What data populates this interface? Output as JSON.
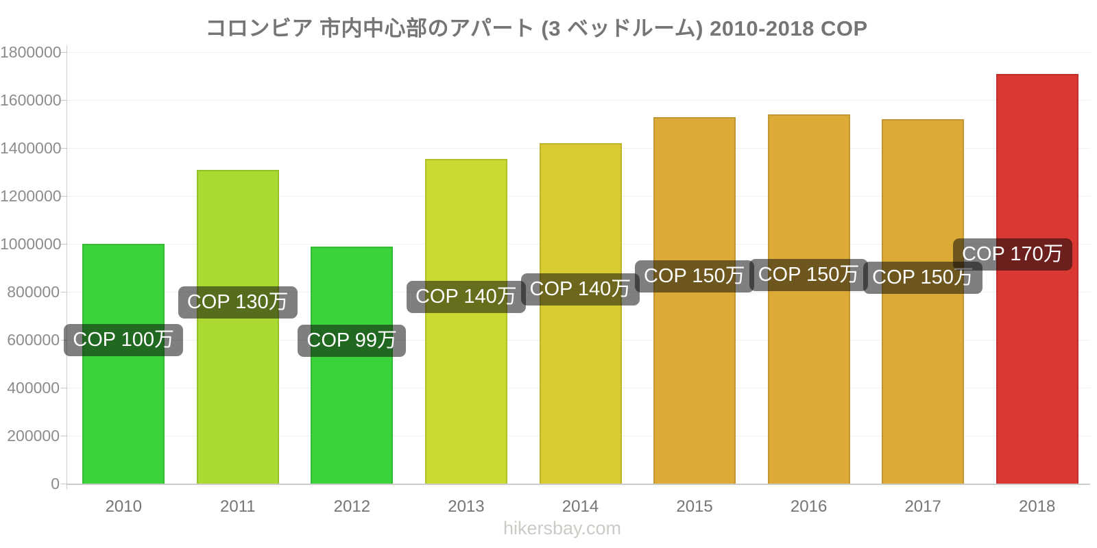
{
  "footer": {
    "text": "hikersbay.com"
  },
  "chart_data": {
    "type": "bar",
    "title": "コロンビア 市内中心部のアパート (3 ベッドルーム) 2010-2018 COP",
    "xlabel": "",
    "ylabel": "",
    "categories": [
      "2010",
      "2011",
      "2012",
      "2013",
      "2014",
      "2015",
      "2016",
      "2017",
      "2018"
    ],
    "values": [
      1000000,
      1310000,
      990000,
      1355000,
      1420000,
      1530000,
      1540000,
      1520000,
      1710000
    ],
    "bar_labels": [
      "COP 100万",
      "COP 130万",
      "COP 99万",
      "COP 140万",
      "COP 140万",
      "COP 150万",
      "COP 150万",
      "COP 150万",
      "COP 170万"
    ],
    "bar_colors": [
      "#3bd23b",
      "#aad932",
      "#3bd23b",
      "#cbda33",
      "#d9cb32",
      "#dcab37",
      "#dcab37",
      "#dcab37",
      "#da3832"
    ],
    "ylim": [
      0,
      1800000
    ],
    "ytick_interval": 200000,
    "y_ticks": [
      "0",
      "200000",
      "400000",
      "600000",
      "800000",
      "1000000",
      "1200000",
      "1400000",
      "1600000",
      "1800000"
    ],
    "grid": true,
    "legend": false,
    "badge_style": {
      "background": "rgba(10,10,10,0.52)",
      "text_color": "#ffffff"
    },
    "axis_text_color": "#8c8c8c",
    "title_color": "#757575"
  }
}
